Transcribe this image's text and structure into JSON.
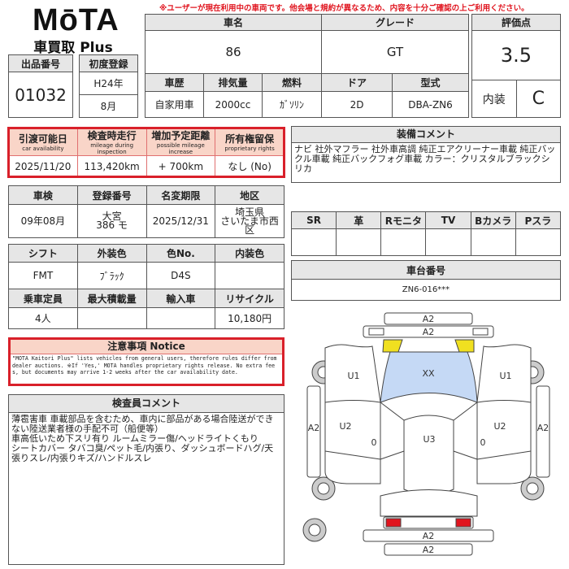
{
  "logo": {
    "brand": "MōTA",
    "sub": "車買取 Plus"
  },
  "warning": "※ユーザーが現在利用中の車両です。他会場と規約が異なるため、内容を十分ご確認の上ご利用ください。",
  "lot": {
    "label": "出品番号",
    "value": "01032"
  },
  "first_reg": {
    "label": "初度登録",
    "year": "H24年",
    "month": "8月"
  },
  "car": {
    "name_label": "車名",
    "name": "86",
    "grade_label": "グレード",
    "grade": "GT",
    "history_label": "車歴",
    "history": "自家用車",
    "displacement_label": "排気量",
    "displacement": "2000cc",
    "fuel_label": "燃料",
    "fuel": "ｶﾞｿﾘﾝ",
    "doors_label": "ドア",
    "doors": "2D",
    "model_label": "型式",
    "model": "DBA-ZN6"
  },
  "rating": {
    "label": "評価点",
    "score": "3.5",
    "interior_label": "内装",
    "interior": "C"
  },
  "availability": {
    "headers": [
      {
        "ja": "引渡可能日",
        "en": "car availability"
      },
      {
        "ja": "検査時走行",
        "en": "mileage during inspection"
      },
      {
        "ja": "増加予定距離",
        "en": "possible mileage increase"
      },
      {
        "ja": "所有権留保",
        "en": "proprietary rights"
      }
    ],
    "values": [
      "2025/11/20",
      "113,420km",
      "+ 700km",
      "なし (No)"
    ]
  },
  "registration": {
    "headers": [
      "車検",
      "登録番号",
      "名変期限",
      "地区"
    ],
    "values": [
      "09年08月",
      "大宮\n386 モ",
      "2025/12/31",
      "埼玉県\nさいたま市西区"
    ]
  },
  "specs": {
    "headers1": [
      "シフト",
      "外装色",
      "色No.",
      "内装色"
    ],
    "values1": [
      "FMT",
      "ﾌﾞﾗｯｸ",
      "D4S",
      ""
    ],
    "headers2": [
      "乗車定員",
      "最大積載量",
      "輸入車",
      "リサイクル"
    ],
    "values2": [
      "4人",
      "",
      "",
      "10,180円"
    ]
  },
  "notice": {
    "title": "注意事項 Notice",
    "body": "\"MOTA Kaitori Plus\" lists vehicles from general users, therefore rules differ from dealer auctions. ※If 'Yes,' MOTA handles proprietary rights release. No extra fees, but documents may arrive 1-2 weeks after the car availability date."
  },
  "inspector": {
    "title": "検査員コメント",
    "body": "薄雹害車 車載部品を含むため、車内に部品がある場合陸送ができない陸送業者様の手配不可（船便等）\n車高低いため下スリ有り ルームミラー傷/ヘッドライトくもり\nシートカバー タバコ臭/ペット毛/内張り、ダッシュボードハグ/天張りスレ/内張りキズ/ハンドルスレ"
  },
  "equipment": {
    "title": "装備コメント",
    "body": "ナビ 社外マフラー 社外車高調 純正エアクリーナー車載 純正バックル車載 純正バックフォグ車載 カラー：クリスタルブラックシリカ"
  },
  "options": {
    "headers": [
      "SR",
      "革",
      "Rモニタ",
      "TV",
      "Bカメラ",
      "Pスラ"
    ],
    "values": [
      "",
      "",
      "",
      "",
      "",
      ""
    ]
  },
  "chassis": {
    "label": "車台番号",
    "value": "ZN6-016***"
  },
  "diagram": {
    "front_bumper": "A2",
    "front_bumper2": "A2",
    "hood": "XX",
    "left_front": "U1",
    "right_front": "U1",
    "left_door": "U2",
    "right_door": "U2",
    "left_pillar": "0",
    "right_pillar": "0",
    "roof": "U3",
    "left_sill": "A2",
    "right_sill": "A2",
    "rear_bumper": "A2",
    "rear_bumper2": "A2",
    "colors": {
      "hood": "#c5d9f5",
      "headlights": "#f0e020",
      "taillights": "#e0141e",
      "red_frame": "#d9202a"
    }
  }
}
